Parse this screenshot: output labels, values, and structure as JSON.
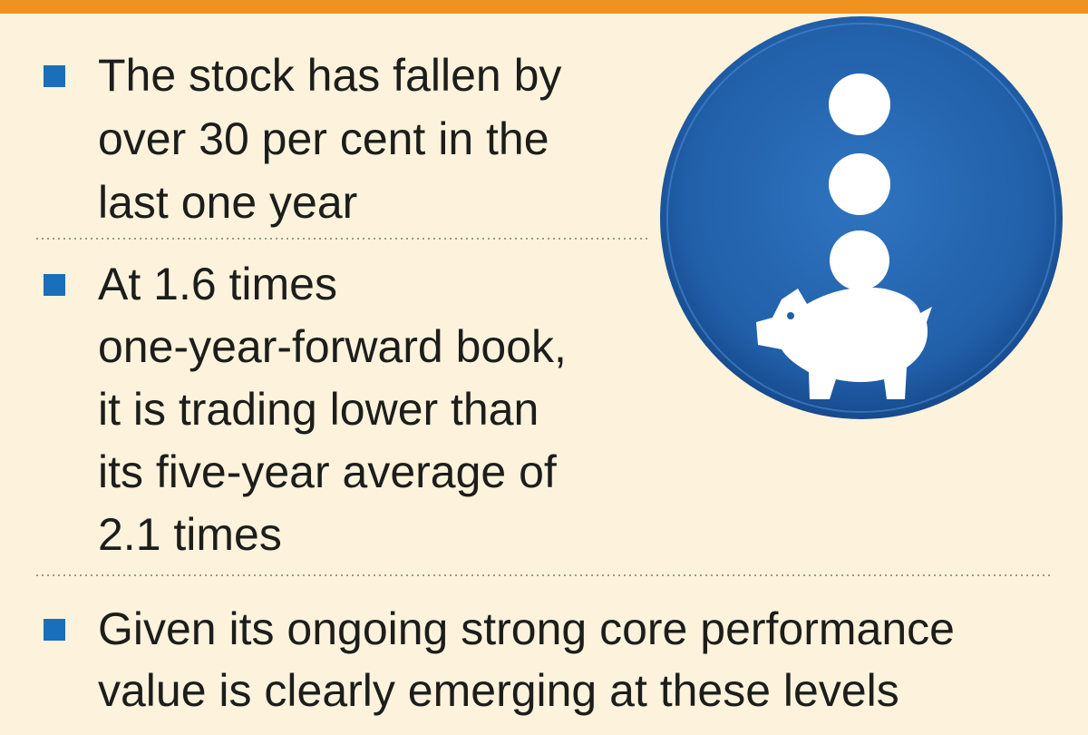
{
  "bullets": [
    {
      "lines": [
        "The stock has fallen by",
        "over 30 per cent in the",
        "last one year"
      ]
    },
    {
      "lines": [
        "At 1.6 times",
        "one-year-forward book,",
        "it is trading lower than",
        "its five-year average of",
        "2.1 times"
      ]
    },
    {
      "lines": [
        "Given its ongoing strong core performance",
        "value is clearly emerging at these levels"
      ]
    }
  ]
}
